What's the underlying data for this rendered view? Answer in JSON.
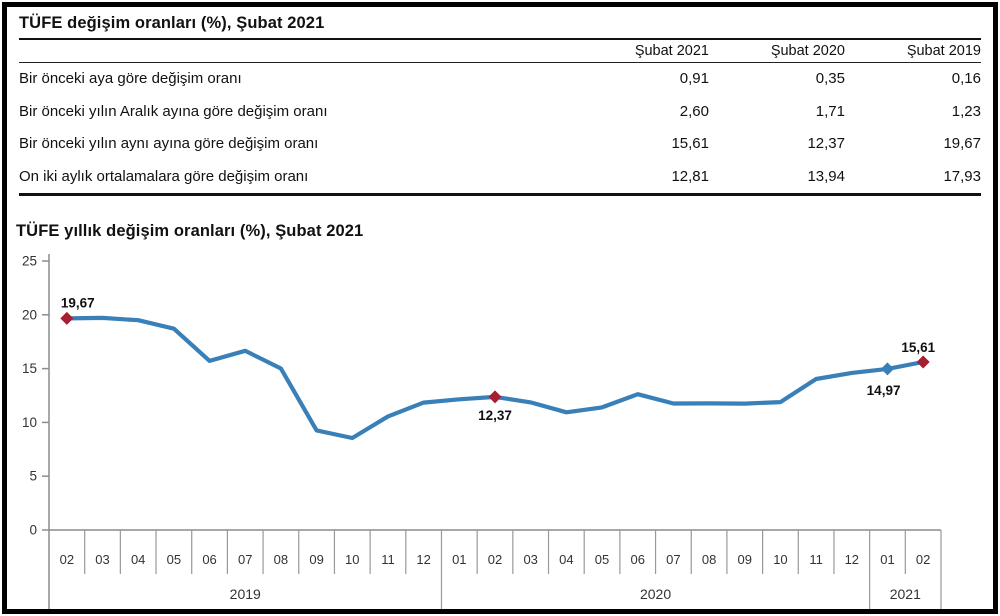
{
  "table": {
    "title": "TÜFE değişim oranları (%), Şubat 2021",
    "columns": [
      "Şubat 2021",
      "Şubat 2020",
      "Şubat 2019"
    ],
    "rows": [
      {
        "label": "Bir önceki aya göre değişim oranı",
        "values": [
          "0,91",
          "0,35",
          "0,16"
        ]
      },
      {
        "label": "Bir önceki yılın Aralık ayına göre değişim oranı",
        "values": [
          "2,60",
          "1,71",
          "1,23"
        ]
      },
      {
        "label": "Bir önceki yılın aynı ayına göre değişim oranı",
        "values": [
          "15,61",
          "12,37",
          "19,67"
        ]
      },
      {
        "label": "On iki aylık ortalamalara göre değişim oranı",
        "values": [
          "12,81",
          "13,94",
          "17,93"
        ]
      }
    ]
  },
  "chart_data": {
    "type": "line",
    "title": "TÜFE yıllık değişim oranları (%), Şubat 2021",
    "ylabel": "",
    "xlabel": "",
    "ylim": [
      0,
      25
    ],
    "yticks": [
      0,
      5,
      10,
      15,
      20,
      25
    ],
    "grid": false,
    "legend": "none",
    "line_color": "#3a80b8",
    "highlight_color": "#a51e32",
    "axis_color": "#8c8c8c",
    "box_color": "#999999",
    "tick_text_color": "#333333",
    "x_months": [
      "02",
      "03",
      "04",
      "05",
      "06",
      "07",
      "08",
      "09",
      "10",
      "11",
      "12",
      "01",
      "02",
      "03",
      "04",
      "05",
      "06",
      "07",
      "08",
      "09",
      "10",
      "11",
      "12",
      "01",
      "02"
    ],
    "year_groups": [
      {
        "label": "2019",
        "months": 11
      },
      {
        "label": "2020",
        "months": 12
      },
      {
        "label": "2021",
        "months": 2
      }
    ],
    "values": [
      19.67,
      19.71,
      19.5,
      18.71,
      15.72,
      16.65,
      15.01,
      9.26,
      8.55,
      10.56,
      11.84,
      12.15,
      12.37,
      11.86,
      10.94,
      11.39,
      12.62,
      11.76,
      11.77,
      11.75,
      11.89,
      14.03,
      14.6,
      14.97,
      15.61
    ],
    "annotations": [
      {
        "index": 0,
        "text": "19,67",
        "marker_color": "#a51e32",
        "pos": "above-right"
      },
      {
        "index": 12,
        "text": "12,37",
        "marker_color": "#a51e32",
        "pos": "below"
      },
      {
        "index": 23,
        "text": "14,97",
        "marker_color": "#3a80b8",
        "pos": "below-left"
      },
      {
        "index": 24,
        "text": "15,61",
        "marker_color": "#a51e32",
        "pos": "above-left"
      }
    ]
  }
}
